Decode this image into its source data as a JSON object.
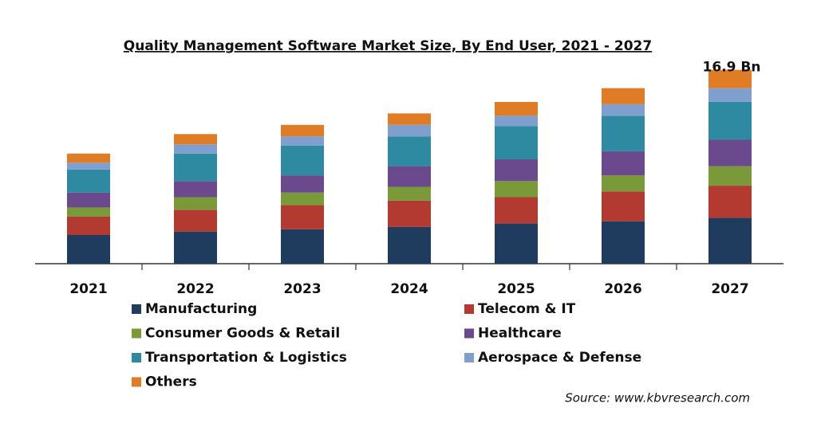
{
  "chart_data": {
    "type": "stacked_bar",
    "title": "Quality Management Software Market Size, By End User, 2021 - 2027",
    "categories": [
      "2021",
      "2022",
      "2023",
      "2024",
      "2025",
      "2026",
      "2027"
    ],
    "series": [
      {
        "name": "Manufacturing",
        "color": "#1f3b5e",
        "values": [
          2.5,
          2.8,
          3.0,
          3.2,
          3.5,
          3.7,
          4.0
        ]
      },
      {
        "name": "Telecom & IT",
        "color": "#b23a31",
        "values": [
          1.6,
          1.9,
          2.1,
          2.3,
          2.3,
          2.6,
          2.8
        ]
      },
      {
        "name": "Consumer Goods & Retail",
        "color": "#7a9a3a",
        "values": [
          0.8,
          1.1,
          1.1,
          1.2,
          1.4,
          1.4,
          1.7
        ]
      },
      {
        "name": "Healthcare",
        "color": "#6a4a8c",
        "values": [
          1.3,
          1.4,
          1.5,
          1.8,
          1.9,
          2.1,
          2.3
        ]
      },
      {
        "name": "Transportation & Logistics",
        "color": "#2d8aa0",
        "values": [
          2.0,
          2.4,
          2.6,
          2.6,
          2.9,
          3.1,
          3.3
        ]
      },
      {
        "name": "Aerospace & Defense",
        "color": "#7f9fcf",
        "values": [
          0.6,
          0.8,
          0.8,
          1.0,
          0.9,
          1.0,
          1.2
        ]
      },
      {
        "name": "Others",
        "color": "#e07b26",
        "values": [
          0.8,
          0.9,
          1.0,
          1.0,
          1.2,
          1.4,
          1.6
        ]
      }
    ],
    "ylim": [
      0,
      17.5
    ],
    "annotation": "16.9 Bn",
    "source": "Source: www.kbvresearch.com"
  }
}
